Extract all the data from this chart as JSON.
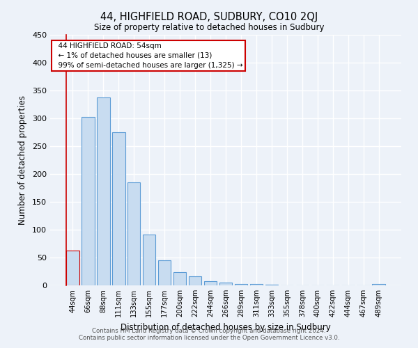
{
  "title": "44, HIGHFIELD ROAD, SUDBURY, CO10 2QJ",
  "subtitle": "Size of property relative to detached houses in Sudbury",
  "xlabel": "Distribution of detached houses by size in Sudbury",
  "ylabel": "Number of detached properties",
  "bar_labels": [
    "44sqm",
    "66sqm",
    "88sqm",
    "111sqm",
    "133sqm",
    "155sqm",
    "177sqm",
    "200sqm",
    "222sqm",
    "244sqm",
    "266sqm",
    "289sqm",
    "311sqm",
    "333sqm",
    "355sqm",
    "378sqm",
    "400sqm",
    "422sqm",
    "444sqm",
    "467sqm",
    "489sqm"
  ],
  "bar_values": [
    62,
    303,
    338,
    275,
    185,
    91,
    45,
    24,
    16,
    8,
    5,
    2,
    2,
    1,
    0,
    0,
    0,
    0,
    0,
    0,
    2
  ],
  "bar_color": "#c8dcf0",
  "bar_edge_color": "#5b9bd5",
  "highlight_bar_index": 0,
  "highlight_edge_color": "#cc0000",
  "annotation_title": "44 HIGHFIELD ROAD: 54sqm",
  "annotation_line1": "← 1% of detached houses are smaller (13)",
  "annotation_line2": "99% of semi-detached houses are larger (1,325) →",
  "annotation_box_edge": "#cc0000",
  "ylim": [
    0,
    450
  ],
  "yticks": [
    0,
    50,
    100,
    150,
    200,
    250,
    300,
    350,
    400,
    450
  ],
  "footer1": "Contains HM Land Registry data © Crown copyright and database right 2024.",
  "footer2": "Contains public sector information licensed under the Open Government Licence v3.0.",
  "bg_color": "#edf2f9",
  "plot_bg_color": "#edf2f9",
  "grid_color": "#ffffff"
}
